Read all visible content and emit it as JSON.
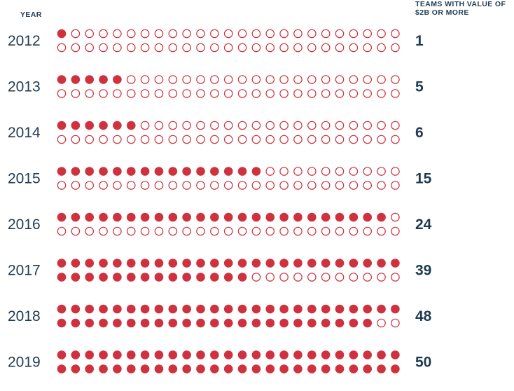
{
  "header": {
    "year_label": "YEAR",
    "teams_label": "TEAMS WITH VALUE OF $2B OR MORE"
  },
  "colors": {
    "filled": "#d0313f",
    "empty_stroke": "#d0313f",
    "text": "#1f3b52"
  },
  "chart_data": {
    "type": "dot-matrix",
    "total_dots_per_year": 50,
    "rows": [
      {
        "year": "2012",
        "value": 1
      },
      {
        "year": "2013",
        "value": 5
      },
      {
        "year": "2014",
        "value": 6
      },
      {
        "year": "2015",
        "value": 15
      },
      {
        "year": "2016",
        "value": 24
      },
      {
        "year": "2017",
        "value": 39
      },
      {
        "year": "2018",
        "value": 48
      },
      {
        "year": "2019",
        "value": 50
      }
    ]
  }
}
